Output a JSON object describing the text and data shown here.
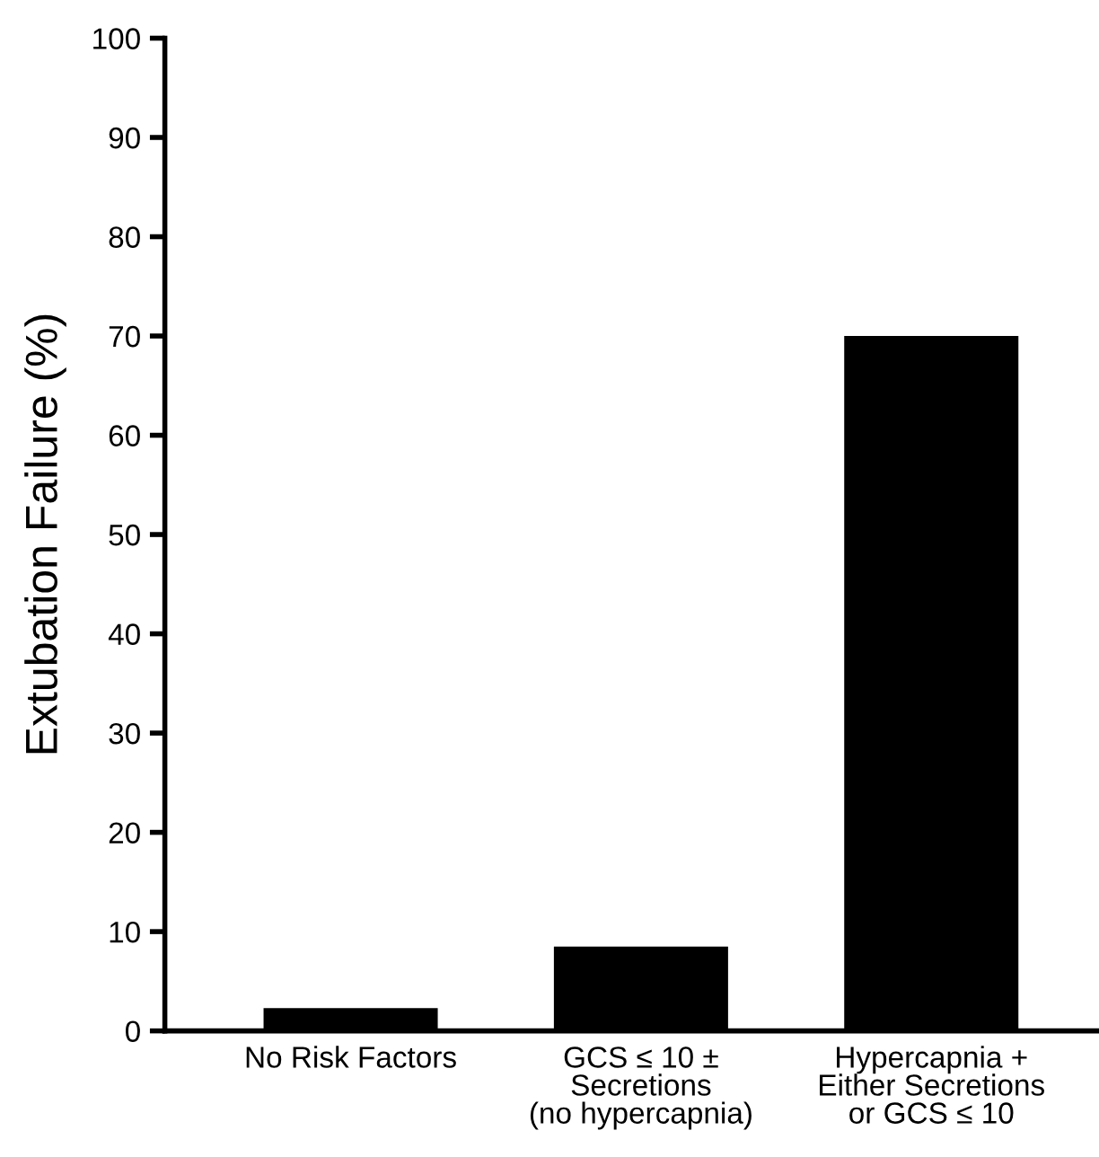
{
  "chart_data": {
    "type": "bar",
    "ylabel": "Extubation Failure (%)",
    "categories": [
      "No Risk Factors",
      "GCS ≤ 10 ±\nSecretions\n(no hypercapnia)",
      "Hypercapnia +\nEither Secretions\nor GCS ≤ 10"
    ],
    "values": [
      2.3,
      8.5,
      70
    ],
    "color": "#000000",
    "ylim": [
      0,
      100
    ],
    "yticks": [
      0,
      10,
      20,
      30,
      40,
      50,
      60,
      70,
      80,
      90,
      100
    ],
    "grid": false,
    "legend": false
  }
}
